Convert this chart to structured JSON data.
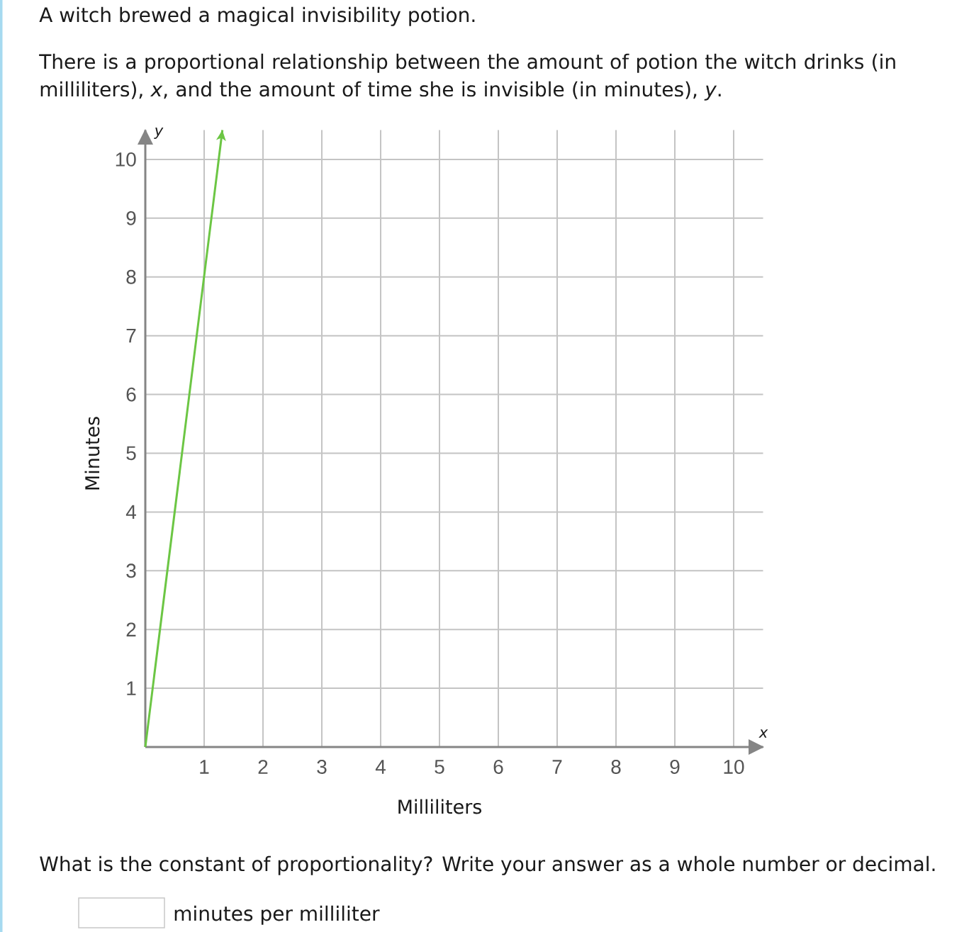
{
  "chart_data": {
    "type": "line",
    "title": "A witch brewed a magical invisibility potion.",
    "subtitle": "There is a proportional relationship between the amount of potion the witch drinks (in milliliters), *x*, and the amount of time she is invisible (in minutes), *y*.",
    "xlabel": "Milliliters",
    "ylabel": "Minutes",
    "x": [
      0,
      1.31
    ],
    "series": [
      {
        "color": "#6cc644",
        "values": [
          0,
          10.5
        ]
      }
    ],
    "xlim": [
      0,
      10.5
    ],
    "ylim": [
      0,
      10.5
    ],
    "xticks": [
      1,
      2,
      3,
      4,
      5,
      6,
      7,
      8,
      9,
      10
    ],
    "yticks": [
      1,
      2,
      3,
      4,
      5,
      6,
      7,
      8,
      9,
      10
    ],
    "grid": true,
    "line_style": "solid",
    "annotations": [
      "y",
      "x",
      "What is the constant of proportionality? Write your answer as a whole number or decimal.",
      "minutes per milliliter"
    ]
  }
}
